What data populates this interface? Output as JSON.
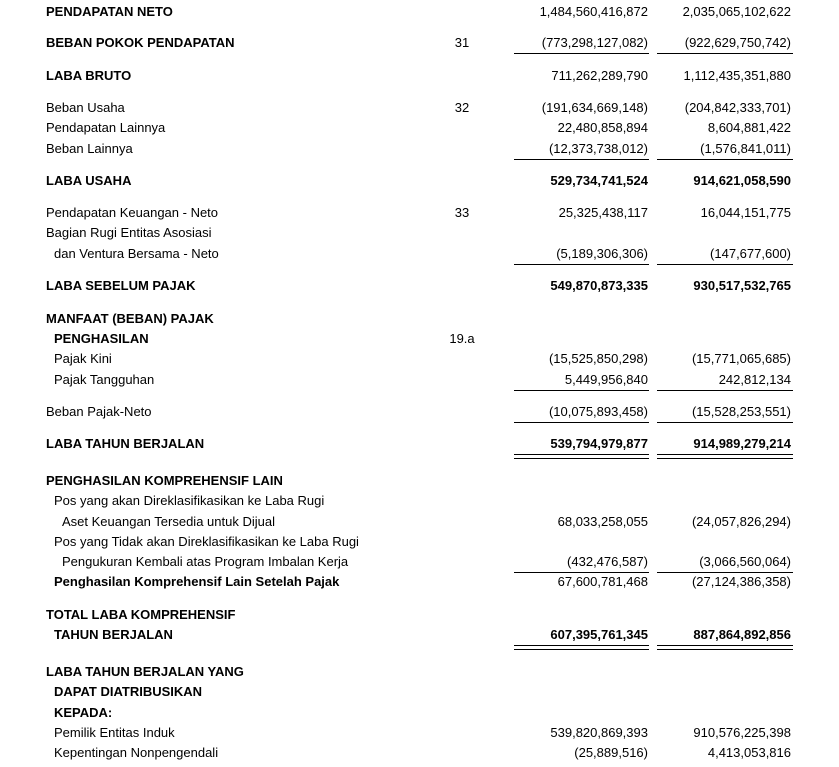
{
  "statement": {
    "rows": [
      {
        "label": "PENDAPATAN NETO",
        "values": [
          "1,484,560,416,872",
          "2,035,065,102,622"
        ]
      },
      {
        "label": "BEBAN POKOK PENDAPATAN",
        "note": "31",
        "values": [
          "(773,298,127,082)",
          "(922,629,750,742)"
        ]
      },
      {
        "label": "LABA BRUTO",
        "values": [
          "711,262,289,790",
          "1,112,435,351,880"
        ]
      },
      {
        "label": "Beban Usaha",
        "note": "32",
        "values": [
          "(191,634,669,148)",
          "(204,842,333,701)"
        ]
      },
      {
        "label": "Pendapatan Lainnya",
        "values": [
          "22,480,858,894",
          "8,604,881,422"
        ]
      },
      {
        "label": "Beban Lainnya",
        "values": [
          "(12,373,738,012)",
          "(1,576,841,011)"
        ]
      },
      {
        "label": "LABA USAHA",
        "values": [
          "529,734,741,524",
          "914,621,058,590"
        ]
      },
      {
        "label": "Pendapatan Keuangan - Neto",
        "note": "33",
        "values": [
          "25,325,438,117",
          "16,044,151,775"
        ]
      },
      {
        "label": "Bagian Rugi Entitas Asosiasi"
      },
      {
        "label": "dan Ventura Bersama - Neto",
        "values": [
          "(5,189,306,306)",
          "(147,677,600)"
        ]
      },
      {
        "label": "LABA SEBELUM PAJAK",
        "values": [
          "549,870,873,335",
          "930,517,532,765"
        ]
      },
      {
        "label": "MANFAAT (BEBAN) PAJAK"
      },
      {
        "label": "PENGHASILAN",
        "note": "19.a"
      },
      {
        "label": "Pajak Kini",
        "values": [
          "(15,525,850,298)",
          "(15,771,065,685)"
        ]
      },
      {
        "label": "Pajak Tangguhan",
        "values": [
          "5,449,956,840",
          "242,812,134"
        ]
      },
      {
        "label": "Beban Pajak-Neto",
        "values": [
          "(10,075,893,458)",
          "(15,528,253,551)"
        ]
      },
      {
        "label": "LABA TAHUN BERJALAN",
        "values": [
          "539,794,979,877",
          "914,989,279,214"
        ]
      },
      {
        "label": "PENGHASILAN KOMPREHENSIF LAIN"
      },
      {
        "label": "Pos yang akan Direklasifikasikan ke Laba Rugi"
      },
      {
        "label": "Aset Keuangan Tersedia untuk Dijual",
        "values": [
          "68,033,258,055",
          "(24,057,826,294)"
        ]
      },
      {
        "label": "Pos yang Tidak akan Direklasifikasikan ke Laba Rugi"
      },
      {
        "label": "Pengukuran Kembali atas Program Imbalan Kerja",
        "values": [
          "(432,476,587)",
          "(3,066,560,064)"
        ]
      },
      {
        "label": "Penghasilan Komprehensif Lain Setelah Pajak",
        "values": [
          "67,600,781,468",
          "(27,124,386,358)"
        ]
      },
      {
        "label": "TOTAL LABA KOMPREHENSIF"
      },
      {
        "label": "TAHUN BERJALAN",
        "values": [
          "607,395,761,345",
          "887,864,892,856"
        ]
      },
      {
        "label": "LABA TAHUN BERJALAN YANG"
      },
      {
        "label": "DAPAT DIATRIBUSIKAN"
      },
      {
        "label": "KEPADA:"
      },
      {
        "label": "Pemilik Entitas Induk",
        "values": [
          "539,820,869,393",
          "910,576,225,398"
        ]
      },
      {
        "label": "Kepentingan Nonpengendali",
        "values": [
          "(25,889,516)",
          "4,413,053,816"
        ]
      }
    ]
  }
}
